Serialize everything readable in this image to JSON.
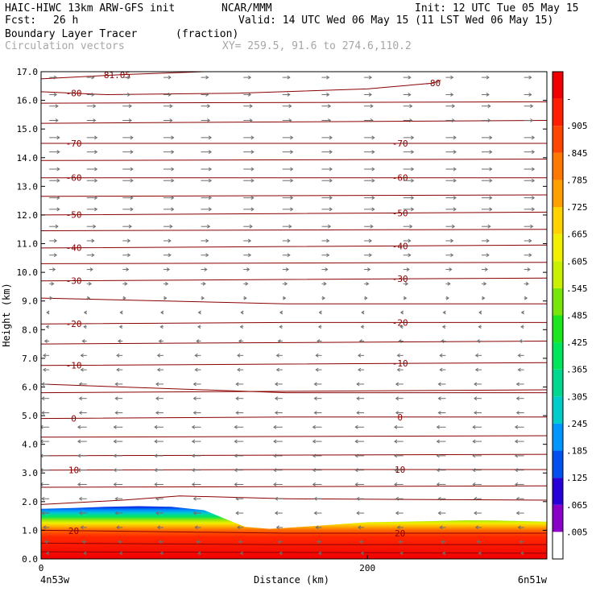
{
  "header": {
    "model": "HAIC-HIWC 13km ARW-GFS init",
    "org": "NCAR/MMM",
    "init": "Init: 12 UTC Tue 05 May 15",
    "fcst_label": "Fcst:",
    "fcst_value": "26 h",
    "valid": "Valid: 14 UTC Wed 06 May 15 (11 LST Wed 06 May 15)",
    "field1": "Boundary Layer Tracer",
    "field1_units": "(fraction)",
    "field2": "Circulation vectors",
    "xy": "XY= 259.5, 91.6 to 274.6,110.2"
  },
  "chart_data": {
    "type": "heatmap",
    "title": "Boundary Layer Tracer (fraction)",
    "xlabel": "Distance (km)",
    "ylabel": "Height (km)",
    "xlim": [
      0,
      310
    ],
    "ylim": [
      0,
      17
    ],
    "x_ticks": [
      0,
      200
    ],
    "x_tick_labels": [
      "0",
      "200"
    ],
    "x_end_labels": [
      "4n53w",
      "6n51w"
    ],
    "y_ticks": [
      0,
      1,
      2,
      3,
      4,
      5,
      6,
      7,
      8,
      9,
      10,
      11,
      12,
      13,
      14,
      15,
      16,
      17
    ],
    "y_tick_labels": [
      "0.0",
      "1.0",
      "2.0",
      "3.0",
      "4.0",
      "5.0",
      "6.0",
      "7.0",
      "8.0",
      "9.0",
      "10.0",
      "11.0",
      "12.0",
      "13.0",
      "14.0",
      "15.0",
      "16.0",
      "17.0"
    ],
    "colorbar": {
      "labels": [
        ".005",
        ".065",
        ".125",
        ".185",
        ".245",
        ".305",
        ".365",
        ".425",
        ".485",
        ".545",
        ".605",
        ".665",
        ".725",
        ".785",
        ".845",
        ".905",
        "-"
      ],
      "colors": [
        "#ffffff",
        "#8a00c8",
        "#2800d8",
        "#0050f0",
        "#0096ff",
        "#00cccc",
        "#00d890",
        "#00e65a",
        "#1ee61e",
        "#78e60a",
        "#c8f000",
        "#f0f000",
        "#ffd200",
        "#ffa000",
        "#ff7800",
        "#ff4600",
        "#ff1e00",
        "#f00000"
      ]
    },
    "tracer_top_km": [
      [
        0,
        1.75
      ],
      [
        20,
        1.78
      ],
      [
        40,
        1.82
      ],
      [
        60,
        1.84
      ],
      [
        80,
        1.82
      ],
      [
        100,
        1.7
      ],
      [
        115,
        1.35
      ],
      [
        125,
        1.12
      ],
      [
        140,
        1.05
      ],
      [
        160,
        1.12
      ],
      [
        180,
        1.2
      ],
      [
        200,
        1.28
      ],
      [
        220,
        1.3
      ],
      [
        240,
        1.32
      ],
      [
        260,
        1.35
      ],
      [
        280,
        1.34
      ],
      [
        310,
        1.3
      ]
    ],
    "temperature_contours": [
      {
        "label": "-81.05",
        "points": [
          [
            0,
            16.75
          ],
          [
            50,
            16.9
          ],
          [
            100,
            17.0
          ]
        ]
      },
      {
        "label": "-80",
        "points": [
          [
            0,
            16.3
          ],
          [
            40,
            16.2
          ],
          [
            120,
            16.25
          ],
          [
            200,
            16.4
          ],
          [
            240,
            16.6
          ],
          [
            245,
            16.7
          ]
        ]
      },
      {
        "label": "-70",
        "points": [
          [
            0,
            14.5
          ],
          [
            150,
            14.5
          ],
          [
            310,
            14.5
          ]
        ]
      },
      {
        "label": "-60",
        "points": [
          [
            0,
            13.3
          ],
          [
            150,
            13.3
          ],
          [
            310,
            13.3
          ]
        ]
      },
      {
        "label": "-50",
        "points": [
          [
            0,
            12.0
          ],
          [
            150,
            12.05
          ],
          [
            310,
            12.1
          ]
        ]
      },
      {
        "label": "-40",
        "points": [
          [
            0,
            10.85
          ],
          [
            150,
            10.9
          ],
          [
            310,
            10.95
          ]
        ]
      },
      {
        "label": "-30",
        "points": [
          [
            0,
            9.7
          ],
          [
            150,
            9.75
          ],
          [
            310,
            9.8
          ]
        ]
      },
      {
        "label": "-20",
        "points": [
          [
            0,
            8.2
          ],
          [
            150,
            8.25
          ],
          [
            310,
            8.25
          ]
        ]
      },
      {
        "label": "-10",
        "points": [
          [
            0,
            6.75
          ],
          [
            150,
            6.8
          ],
          [
            310,
            6.85
          ]
        ]
      },
      {
        "label": "0",
        "points": [
          [
            0,
            4.9
          ],
          [
            150,
            4.95
          ],
          [
            310,
            4.95
          ]
        ]
      },
      {
        "label": "10",
        "points": [
          [
            0,
            3.1
          ],
          [
            150,
            3.12
          ],
          [
            310,
            3.12
          ]
        ]
      },
      {
        "label": "20",
        "points": [
          [
            0,
            1.0
          ],
          [
            150,
            0.9
          ],
          [
            310,
            0.9
          ]
        ]
      }
    ],
    "extra_contour_levels": [
      [
        [
          0,
          15.9
        ],
        [
          310,
          15.95
        ]
      ],
      [
        [
          0,
          15.2
        ],
        [
          310,
          15.3
        ]
      ],
      [
        [
          0,
          13.9
        ],
        [
          310,
          13.95
        ]
      ],
      [
        [
          0,
          12.65
        ],
        [
          310,
          12.7
        ]
      ],
      [
        [
          0,
          11.45
        ],
        [
          310,
          11.5
        ]
      ],
      [
        [
          0,
          10.3
        ],
        [
          310,
          10.35
        ]
      ],
      [
        [
          0,
          9.1
        ],
        [
          150,
          8.9
        ],
        [
          310,
          8.9
        ]
      ],
      [
        [
          0,
          7.5
        ],
        [
          310,
          7.6
        ]
      ],
      [
        [
          0,
          6.1
        ],
        [
          150,
          5.8
        ],
        [
          310,
          5.8
        ]
      ],
      [
        [
          0,
          5.8
        ],
        [
          310,
          5.9
        ]
      ],
      [
        [
          0,
          4.25
        ],
        [
          310,
          4.3
        ]
      ],
      [
        [
          0,
          3.6
        ],
        [
          310,
          3.65
        ]
      ],
      [
        [
          0,
          2.5
        ],
        [
          310,
          2.55
        ]
      ],
      [
        [
          0,
          1.9
        ],
        [
          50,
          2.05
        ],
        [
          85,
          2.2
        ],
        [
          150,
          2.1
        ],
        [
          310,
          2.05
        ]
      ],
      [
        [
          0,
          0.55
        ],
        [
          150,
          0.5
        ],
        [
          310,
          0.5
        ]
      ],
      [
        [
          0,
          0.25
        ],
        [
          310,
          0.2
        ]
      ]
    ],
    "wind_vector_rows_km": [
      16.8,
      16.2,
      15.8,
      15.3,
      14.7,
      14.2,
      13.6,
      13.2,
      12.6,
      12.2,
      11.6,
      11.1,
      10.6,
      10.1,
      9.6,
      9.1,
      8.6,
      8.1,
      7.6,
      7.1,
      6.6,
      6.1,
      5.6,
      5.1,
      4.6,
      4.1,
      3.6,
      3.1,
      2.6,
      2.1,
      1.6,
      1.1,
      0.6,
      0.2
    ],
    "wind_vector_columns_km": [
      5,
      28,
      50,
      75,
      98,
      124,
      148,
      172,
      198,
      222,
      248,
      270,
      296
    ],
    "wind_u_by_row": [
      5,
      5,
      6,
      6,
      7,
      7,
      7,
      7,
      7,
      7,
      6,
      5,
      5,
      4,
      3,
      2,
      -1,
      -2,
      -3,
      -4,
      -4,
      -5,
      -5,
      -5,
      -6,
      -6,
      -6,
      -6,
      -6,
      -5,
      -5,
      -4,
      -3,
      -2
    ]
  },
  "colors": {
    "contour": "#8b0000",
    "vector": "#6e6e6e"
  }
}
